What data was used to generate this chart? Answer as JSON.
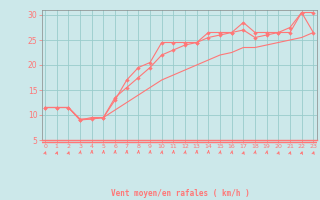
{
  "title": "",
  "xlabel": "Vent moyen/en rafales ( km/h )",
  "bg_color": "#cce8ea",
  "grid_color": "#99cccc",
  "line_color": "#ff7777",
  "x_ticks": [
    0,
    1,
    2,
    3,
    4,
    5,
    6,
    7,
    8,
    9,
    10,
    11,
    12,
    13,
    14,
    15,
    16,
    17,
    18,
    19,
    20,
    21,
    22,
    23
  ],
  "y_ticks": [
    5,
    10,
    15,
    20,
    25,
    30
  ],
  "xlim": [
    -0.3,
    23.3
  ],
  "ylim": [
    5,
    31
  ],
  "line1_x": [
    0,
    1,
    2,
    3,
    4,
    5,
    6,
    7,
    8,
    9,
    10,
    11,
    12,
    13,
    14,
    15,
    16,
    17,
    18,
    19,
    20,
    21,
    22,
    23
  ],
  "line1_y": [
    11.5,
    11.5,
    11.5,
    9.0,
    9.2,
    9.5,
    13.0,
    17.0,
    19.5,
    20.5,
    24.5,
    24.5,
    24.5,
    24.5,
    26.5,
    26.5,
    26.5,
    28.5,
    26.5,
    26.5,
    26.5,
    26.5,
    30.5,
    30.5
  ],
  "line2_x": [
    0,
    1,
    2,
    3,
    4,
    5,
    6,
    7,
    8,
    9,
    10,
    11,
    12,
    13,
    14,
    15,
    16,
    17,
    18,
    19,
    20,
    21,
    22,
    23
  ],
  "line2_y": [
    11.5,
    11.5,
    11.5,
    9.0,
    9.5,
    9.5,
    13.5,
    15.5,
    17.5,
    19.5,
    22.0,
    23.0,
    24.0,
    24.5,
    25.5,
    26.0,
    26.5,
    27.0,
    25.5,
    26.0,
    26.5,
    27.5,
    30.5,
    26.5
  ],
  "line3_x": [
    0,
    1,
    2,
    3,
    4,
    5,
    6,
    7,
    8,
    9,
    10,
    11,
    12,
    13,
    14,
    15,
    16,
    17,
    18,
    19,
    20,
    21,
    22,
    23
  ],
  "line3_y": [
    11.5,
    11.5,
    11.5,
    9.2,
    9.2,
    9.5,
    11.0,
    12.5,
    14.0,
    15.5,
    17.0,
    18.0,
    19.0,
    20.0,
    21.0,
    22.0,
    22.5,
    23.5,
    23.5,
    24.0,
    24.5,
    25.0,
    25.5,
    26.5
  ],
  "arrow_angles_deg": [
    45,
    45,
    45,
    30,
    15,
    15,
    15,
    15,
    15,
    15,
    30,
    15,
    30,
    15,
    15,
    30,
    30,
    45,
    30,
    30,
    45,
    45,
    45,
    45
  ]
}
